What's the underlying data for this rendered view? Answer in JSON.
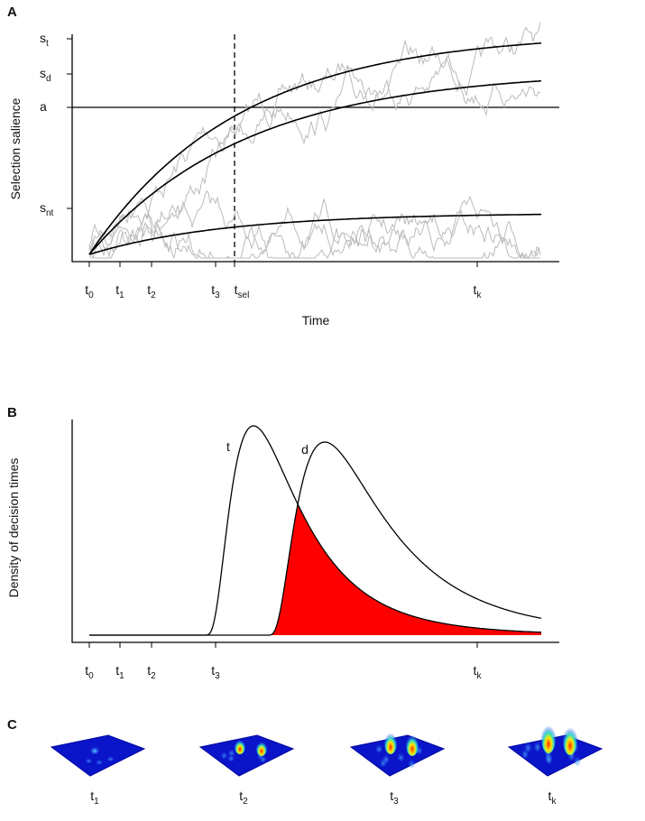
{
  "panel_a": {
    "label": "A",
    "y_axis_label": "Selection salience",
    "x_axis_label": "Time",
    "y_ticks": [
      {
        "base": "s",
        "sub": "t"
      },
      {
        "base": "s",
        "sub": "d"
      },
      {
        "base": "a"
      },
      {
        "base": "s",
        "sub": "nt"
      }
    ],
    "x_ticks": [
      {
        "base": "t",
        "sub": "0"
      },
      {
        "base": "t",
        "sub": "1"
      },
      {
        "base": "t",
        "sub": "2"
      },
      {
        "base": "t",
        "sub": "3"
      },
      {
        "base": "t",
        "sub": "sel"
      },
      {
        "base": "t",
        "sub": "k"
      }
    ]
  },
  "panel_b": {
    "label": "B",
    "y_axis_label": "Density of decision times",
    "curve_labels": [
      "t",
      "d"
    ],
    "x_ticks": [
      {
        "base": "t",
        "sub": "0"
      },
      {
        "base": "t",
        "sub": "1"
      },
      {
        "base": "t",
        "sub": "2"
      },
      {
        "base": "t",
        "sub": "3"
      },
      {
        "base": "t",
        "sub": "k"
      }
    ]
  },
  "panel_c": {
    "label": "C",
    "labels": [
      {
        "base": "t",
        "sub": "1"
      },
      {
        "base": "t",
        "sub": "2"
      },
      {
        "base": "t",
        "sub": "3"
      },
      {
        "base": "t",
        "sub": "k"
      }
    ]
  }
}
